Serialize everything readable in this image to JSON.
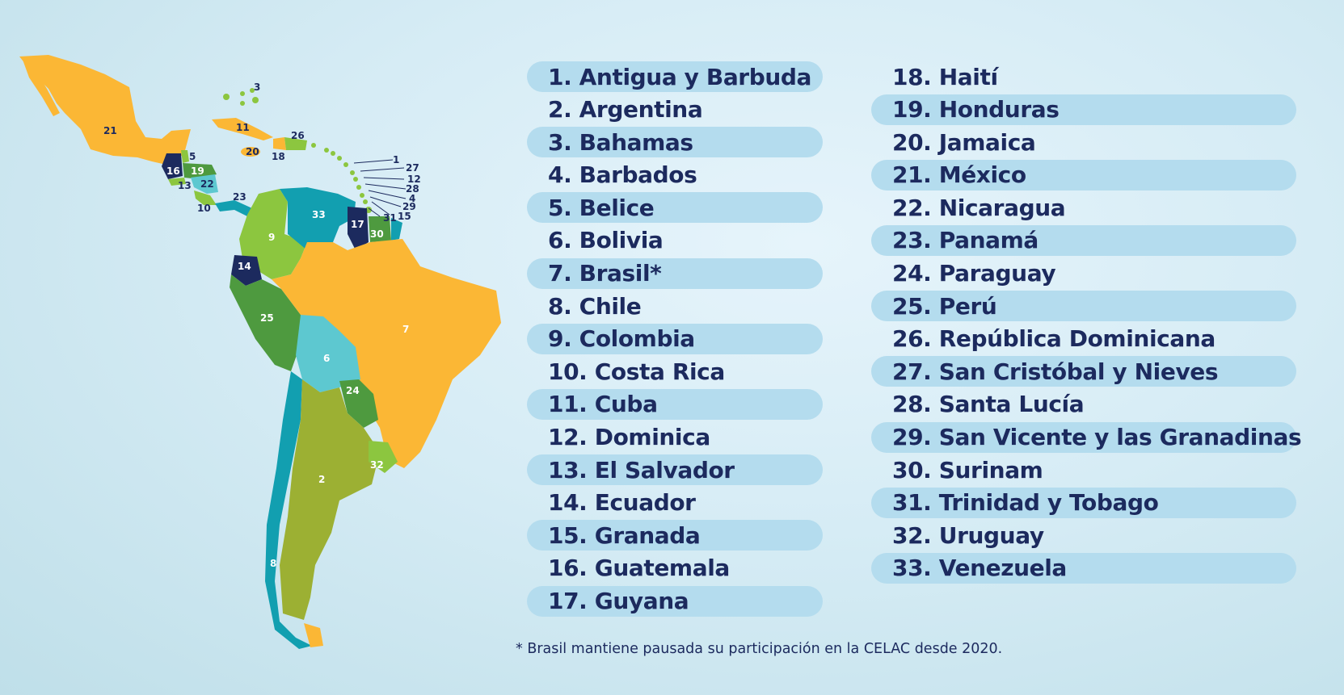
{
  "map": {
    "labels": [
      "1",
      "2",
      "3",
      "4",
      "5",
      "6",
      "7",
      "8",
      "9",
      "10",
      "11",
      "12",
      "13",
      "14",
      "15",
      "16",
      "17",
      "18",
      "19",
      "20",
      "21",
      "22",
      "23",
      "24",
      "25",
      "26",
      "27",
      "28",
      "29",
      "30",
      "31",
      "32",
      "33"
    ],
    "colors": {
      "yellow": "#fbb735",
      "green_dark": "#4e9a3f",
      "green_light": "#8cc63f",
      "olive": "#9cb033",
      "teal": "#129fb0",
      "cyan": "#5dc8d0",
      "navy": "#1c2a5e"
    }
  },
  "countries_left": [
    {
      "label": "1. Antigua y Barbuda",
      "highlight": true
    },
    {
      "label": "2. Argentina",
      "highlight": false
    },
    {
      "label": "3. Bahamas",
      "highlight": true
    },
    {
      "label": "4. Barbados",
      "highlight": false
    },
    {
      "label": "5. Belice",
      "highlight": true
    },
    {
      "label": "6. Bolivia",
      "highlight": false
    },
    {
      "label": "7. Brasil*",
      "highlight": true
    },
    {
      "label": "8. Chile",
      "highlight": false
    },
    {
      "label": "9. Colombia",
      "highlight": true
    },
    {
      "label": "10. Costa Rica",
      "highlight": false
    },
    {
      "label": "11. Cuba",
      "highlight": true
    },
    {
      "label": "12. Dominica",
      "highlight": false
    },
    {
      "label": "13. El Salvador",
      "highlight": true
    },
    {
      "label": "14. Ecuador",
      "highlight": false
    },
    {
      "label": "15. Granada",
      "highlight": true
    },
    {
      "label": "16. Guatemala",
      "highlight": false
    },
    {
      "label": "17. Guyana",
      "highlight": true
    }
  ],
  "countries_right": [
    {
      "label": "18. Haití",
      "highlight": false
    },
    {
      "label": "19. Honduras",
      "highlight": true
    },
    {
      "label": "20. Jamaica",
      "highlight": false
    },
    {
      "label": "21. México",
      "highlight": true
    },
    {
      "label": "22. Nicaragua",
      "highlight": false
    },
    {
      "label": "23. Panamá",
      "highlight": true
    },
    {
      "label": "24. Paraguay",
      "highlight": false
    },
    {
      "label": "25. Perú",
      "highlight": true
    },
    {
      "label": "26. República Dominicana",
      "highlight": false
    },
    {
      "label": "27. San Cristóbal y Nieves",
      "highlight": true
    },
    {
      "label": "28. Santa Lucía",
      "highlight": false
    },
    {
      "label": "29. San Vicente y las Granadinas",
      "highlight": true
    },
    {
      "label": "30. Surinam",
      "highlight": false
    },
    {
      "label": "31. Trinidad y Tobago",
      "highlight": true
    },
    {
      "label": "32. Uruguay",
      "highlight": false
    },
    {
      "label": "33. Venezuela",
      "highlight": true
    }
  ],
  "footnote": "* Brasil mantiene pausada su participación en la CELAC desde 2020."
}
